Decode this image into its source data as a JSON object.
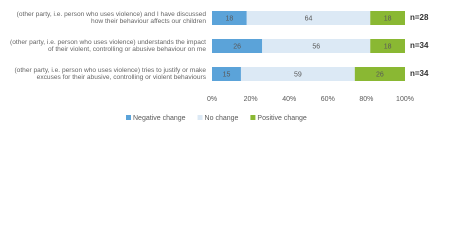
{
  "chart_data": {
    "type": "stacked-bar-horizontal",
    "categories": [
      "(other party, i.e. person who uses violence) and I have discussed how their behaviour affects our children",
      "(other party, i.e. person who uses violence) understands the impact of their violent, controlling or abusive behaviour on me",
      "(other party, i.e. person who uses violence) tries to justify or make excuses for their abusive, controlling or violent behaviours"
    ],
    "series": [
      {
        "name": "Negative change",
        "color": "#5ba3d9",
        "values": [
          18,
          26,
          15
        ]
      },
      {
        "name": "No change",
        "color": "#dce9f5",
        "values": [
          64,
          56,
          59
        ]
      },
      {
        "name": "Positive change",
        "color": "#8ab833",
        "values": [
          18,
          18,
          26
        ]
      }
    ],
    "n_labels": [
      "n=28",
      "n=34",
      "n=34"
    ],
    "xlim": [
      0,
      100
    ],
    "xticks": [
      {
        "value": 0,
        "label": "0%"
      },
      {
        "value": 20,
        "label": "20%"
      },
      {
        "value": 40,
        "label": "40%"
      },
      {
        "value": 60,
        "label": "60%"
      },
      {
        "value": 80,
        "label": "80%"
      },
      {
        "value": 100,
        "label": "100%"
      }
    ],
    "legend": "bottom"
  }
}
